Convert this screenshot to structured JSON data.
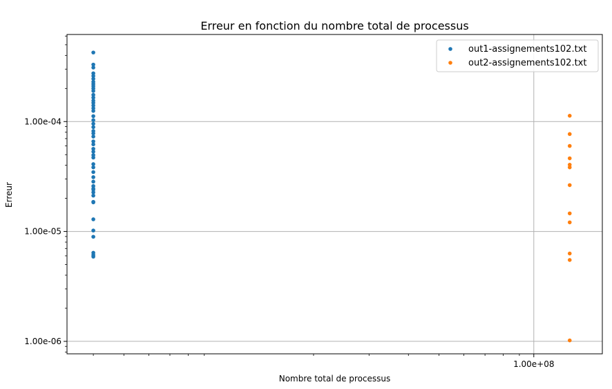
{
  "chart_data": {
    "type": "scatter",
    "title": "Erreur en fonction du nombre total de processus",
    "xlabel": "Nombre total de processus",
    "ylabel": "Erreur",
    "x_scale": "log",
    "y_scale": "log",
    "xlim": [
      3300000,
      165000000
    ],
    "ylim": [
      7.7e-07,
      0.00062
    ],
    "x_ticks": [
      {
        "value": 100000000,
        "label": "1.00e+08"
      }
    ],
    "y_ticks": [
      {
        "value": 0.0001,
        "label": "1.00e-04"
      },
      {
        "value": 1e-05,
        "label": "1.00e-05"
      },
      {
        "value": 1e-06,
        "label": "1.00e-06"
      }
    ],
    "grid": true,
    "legend_position": "top-right",
    "series": [
      {
        "name": "out1-assignements102.txt",
        "color": "#1f77b4",
        "x": 4000000,
        "y": [
          0.000425,
          0.00033,
          0.00031,
          0.000275,
          0.00026,
          0.000245,
          0.00023,
          0.00022,
          0.00021,
          0.0002,
          0.00019,
          0.000175,
          0.000165,
          0.000155,
          0.000148,
          0.00014,
          0.000132,
          0.000125,
          0.000112,
          0.000103,
          9.55e-05,
          8.9e-05,
          8.2e-05,
          7.8e-05,
          7.3e-05,
          6.6e-05,
          6.2e-05,
          5.65e-05,
          5.32e-05,
          4.95e-05,
          4.7e-05,
          4.1e-05,
          3.83e-05,
          3.47e-05,
          3.12e-05,
          2.84e-05,
          2.59e-05,
          2.45e-05,
          2.4e-05,
          2.27e-05,
          2.12e-05,
          1.86e-05,
          1.84e-05,
          1.29e-05,
          1.02e-05,
          8.95e-06,
          6.4e-06,
          6.1e-06,
          5.9e-06
        ]
      },
      {
        "name": "out2-assignements102.txt",
        "color": "#ff7f0e",
        "x": 130000000,
        "y": [
          0.000113,
          7.7e-05,
          6e-05,
          4.63e-05,
          4.05e-05,
          3.83e-05,
          2.64e-05,
          1.46e-05,
          1.21e-05,
          6.3e-06,
          5.5e-06,
          1.02e-06
        ]
      }
    ]
  }
}
